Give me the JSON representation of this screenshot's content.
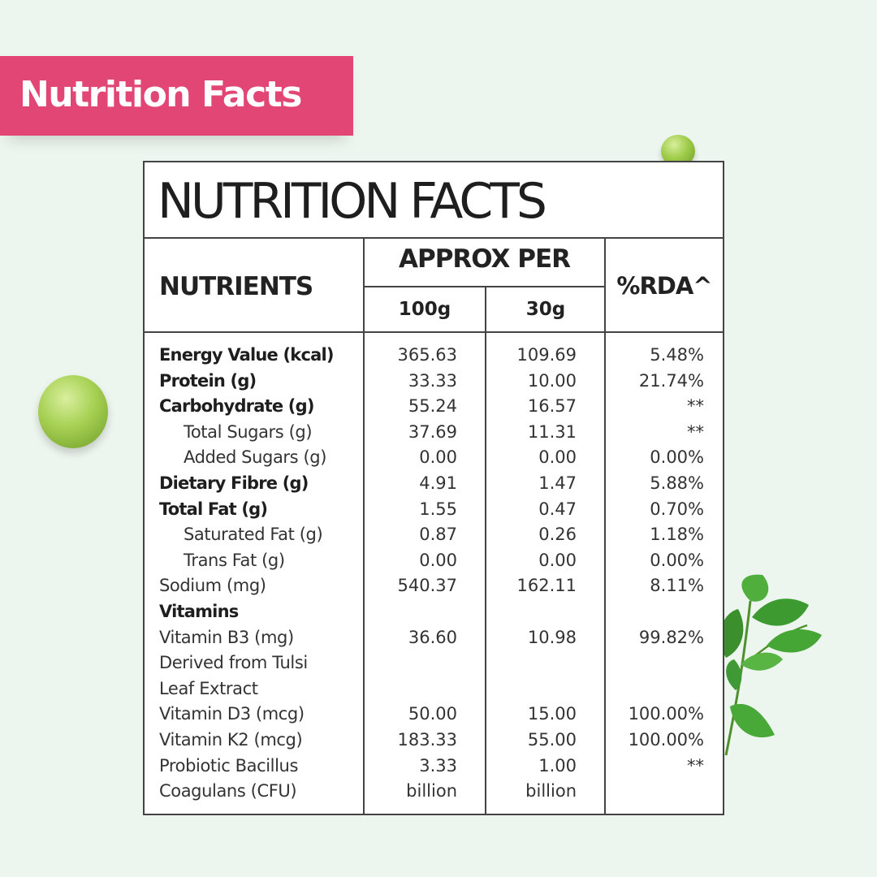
{
  "banner": {
    "label": "Nutrition Facts",
    "color": "#e24674"
  },
  "table": {
    "title": "NUTRITION FACTS",
    "headers": {
      "nutrients": "NUTRIENTS",
      "approx_per": "APPROX PER",
      "per_100g": "100g",
      "per_30g": "30g",
      "rda": "%RDA^"
    },
    "rows": [
      {
        "name": "Energy Value (kcal)",
        "v100": "365.63",
        "v30": "109.69",
        "rda": "5.48%",
        "bold": true,
        "indent": false
      },
      {
        "name": "Protein (g)",
        "v100": "33.33",
        "v30": "10.00",
        "rda": "21.74%",
        "bold": true,
        "indent": false
      },
      {
        "name": "Carbohydrate (g)",
        "v100": "55.24",
        "v30": "16.57",
        "rda": "**",
        "bold": true,
        "indent": false
      },
      {
        "name": "Total Sugars (g)",
        "v100": "37.69",
        "v30": "11.31",
        "rda": "**",
        "bold": false,
        "indent": true
      },
      {
        "name": "Added Sugars (g)",
        "v100": "0.00",
        "v30": "0.00",
        "rda": "0.00%",
        "bold": false,
        "indent": true
      },
      {
        "name": "Dietary Fibre (g)",
        "v100": "4.91",
        "v30": "1.47",
        "rda": "5.88%",
        "bold": true,
        "indent": false
      },
      {
        "name": "Total Fat (g)",
        "v100": "1.55",
        "v30": "0.47",
        "rda": "0.70%",
        "bold": true,
        "indent": false
      },
      {
        "name": "Saturated Fat (g)",
        "v100": "0.87",
        "v30": "0.26",
        "rda": "1.18%",
        "bold": false,
        "indent": true
      },
      {
        "name": "Trans Fat (g)",
        "v100": "0.00",
        "v30": "0.00",
        "rda": "0.00%",
        "bold": false,
        "indent": true
      },
      {
        "name": "Sodium (mg)",
        "v100": "540.37",
        "v30": "162.11",
        "rda": "8.11%",
        "bold": false,
        "indent": false
      },
      {
        "name": "Vitamins",
        "v100": "",
        "v30": "",
        "rda": "",
        "bold": true,
        "indent": false
      },
      {
        "name": "Vitamin B3 (mg)",
        "v100": "36.60",
        "v30": "10.98",
        "rda": "99.82%",
        "bold": false,
        "indent": false
      },
      {
        "name": "Derived from Tulsi",
        "v100": "",
        "v30": "",
        "rda": "",
        "bold": false,
        "indent": false
      },
      {
        "name": "Leaf Extract",
        "v100": "",
        "v30": "",
        "rda": "",
        "bold": false,
        "indent": false
      },
      {
        "name": "Vitamin D3 (mcg)",
        "v100": "50.00",
        "v30": "15.00",
        "rda": "100.00%",
        "bold": false,
        "indent": false
      },
      {
        "name": "Vitamin K2 (mcg)",
        "v100": "183.33",
        "v30": "55.00",
        "rda": "100.00%",
        "bold": false,
        "indent": false
      },
      {
        "name": "Probiotic Bacillus",
        "v100": "3.33",
        "v30": "1.00",
        "rda": "**",
        "bold": false,
        "indent": false
      },
      {
        "name": "Coagulans (CFU)",
        "v100": "billion",
        "v30": "billion",
        "rda": "",
        "bold": false,
        "indent": false
      }
    ]
  },
  "decorations": {
    "pea_color": "#9fcc4a",
    "leaf_color": "#3f9a35",
    "icons": [
      "pea-icon",
      "tulsi-leaf-icon"
    ]
  }
}
